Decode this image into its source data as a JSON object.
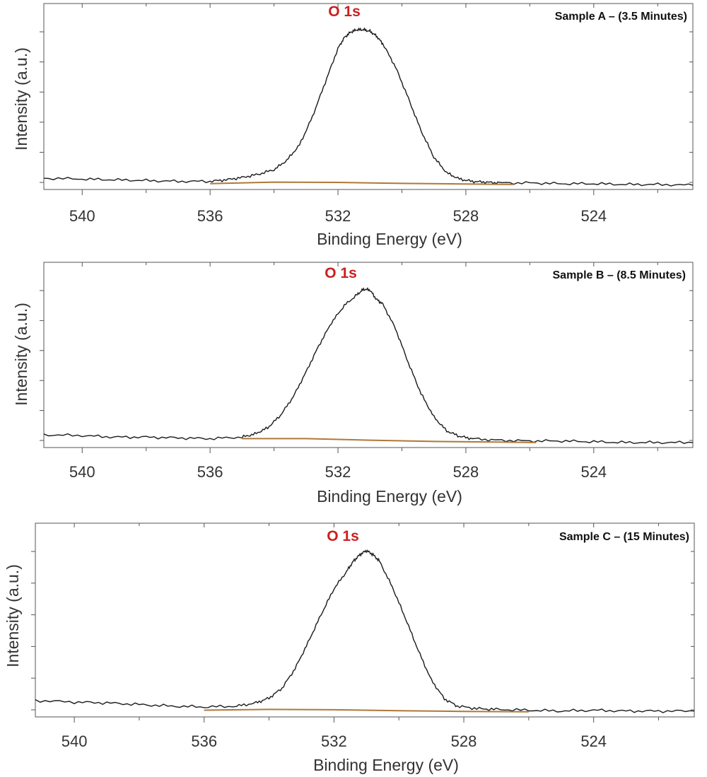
{
  "chart_data": [
    {
      "type": "line",
      "title": "Sample A – (3.5 Minutes)",
      "annotation": "O 1s",
      "xlabel": "Binding Energy (eV)",
      "ylabel": "Intensity (a.u.)",
      "xlim": [
        541.2,
        520.9
      ],
      "x_reversed": true,
      "xticks": [
        540,
        536,
        532,
        528,
        524
      ],
      "xtick_labels": [
        "540",
        "536",
        "532",
        "528",
        "524"
      ],
      "ylim": [
        0,
        1.05
      ],
      "grid": false,
      "series": [
        {
          "role": "spectrum",
          "x": [
            541.2,
            540.0,
            539.0,
            538.0,
            537.0,
            536.0,
            535.5,
            535.0,
            534.5,
            534.0,
            533.6,
            533.2,
            532.8,
            532.4,
            532.0,
            531.8,
            531.6,
            531.4,
            531.2,
            531.0,
            530.8,
            530.6,
            530.2,
            529.8,
            529.4,
            529.0,
            528.6,
            528.2,
            527.8,
            527.4,
            527.0,
            526.0,
            525.0,
            524.0,
            523.0,
            522.0,
            520.9
          ],
          "y": [
            0.045,
            0.04,
            0.035,
            0.03,
            0.025,
            0.025,
            0.035,
            0.05,
            0.07,
            0.1,
            0.16,
            0.26,
            0.44,
            0.66,
            0.88,
            0.95,
            0.985,
            1.0,
            1.0,
            0.99,
            0.96,
            0.91,
            0.76,
            0.56,
            0.35,
            0.18,
            0.08,
            0.04,
            0.025,
            0.02,
            0.015,
            0.015,
            0.01,
            0.01,
            0.005,
            0.005,
            0.0
          ]
        },
        {
          "role": "background",
          "x": [
            536.0,
            534.0,
            532.0,
            530.0,
            528.0,
            526.5
          ],
          "y": [
            0.01,
            0.02,
            0.018,
            0.012,
            0.008,
            0.005
          ]
        }
      ]
    },
    {
      "type": "line",
      "title": "Sample B – (8.5 Minutes)",
      "annotation": "O 1s",
      "xlabel": "Binding Energy (eV)",
      "ylabel": "Intensity (a.u.)",
      "xlim": [
        541.2,
        520.9
      ],
      "x_reversed": true,
      "xticks": [
        540,
        536,
        532,
        528,
        524
      ],
      "xtick_labels": [
        "540",
        "536",
        "532",
        "528",
        "524"
      ],
      "ylim": [
        0,
        1.05
      ],
      "grid": false,
      "series": [
        {
          "role": "spectrum",
          "x": [
            541.2,
            540.0,
            539.0,
            538.0,
            537.0,
            536.0,
            535.0,
            534.6,
            534.2,
            533.8,
            533.4,
            533.0,
            532.6,
            532.2,
            531.8,
            531.4,
            531.2,
            531.0,
            530.8,
            530.6,
            530.2,
            529.8,
            529.4,
            529.0,
            528.6,
            528.2,
            527.8,
            527.0,
            526.0,
            525.0,
            524.0,
            523.0,
            522.0,
            520.9
          ],
          "y": [
            0.055,
            0.05,
            0.04,
            0.04,
            0.035,
            0.03,
            0.04,
            0.06,
            0.1,
            0.18,
            0.3,
            0.46,
            0.63,
            0.78,
            0.89,
            0.96,
            0.995,
            0.99,
            0.93,
            0.9,
            0.74,
            0.52,
            0.32,
            0.17,
            0.08,
            0.045,
            0.03,
            0.02,
            0.015,
            0.015,
            0.01,
            0.005,
            0.005,
            0.005
          ]
        },
        {
          "role": "background",
          "x": [
            535.0,
            533.0,
            531.0,
            529.0,
            527.0,
            525.8
          ],
          "y": [
            0.03,
            0.03,
            0.02,
            0.012,
            0.008,
            0.005
          ]
        }
      ]
    },
    {
      "type": "line",
      "title": "Sample C – (15 Minutes)",
      "annotation": "O 1s",
      "xlabel": "Binding Energy (eV)",
      "ylabel": "Intensity (a.u.)",
      "xlim": [
        541.2,
        520.9
      ],
      "x_reversed": true,
      "xticks": [
        540,
        536,
        532,
        528,
        524
      ],
      "xtick_labels": [
        "540",
        "536",
        "532",
        "528",
        "524"
      ],
      "ylim": [
        0,
        1.05
      ],
      "grid": false,
      "series": [
        {
          "role": "spectrum",
          "x": [
            541.2,
            540.0,
            539.0,
            538.0,
            537.0,
            536.0,
            535.0,
            534.4,
            534.0,
            533.6,
            533.2,
            532.8,
            532.4,
            532.0,
            531.6,
            531.4,
            531.2,
            531.0,
            530.8,
            530.6,
            530.2,
            529.8,
            529.4,
            529.0,
            528.6,
            528.2,
            527.6,
            527.0,
            526.0,
            525.0,
            524.0,
            523.0,
            522.0,
            520.9
          ],
          "y": [
            0.075,
            0.065,
            0.06,
            0.05,
            0.04,
            0.035,
            0.04,
            0.06,
            0.09,
            0.15,
            0.27,
            0.43,
            0.6,
            0.76,
            0.87,
            0.93,
            0.97,
            0.995,
            0.97,
            0.93,
            0.77,
            0.58,
            0.38,
            0.2,
            0.085,
            0.04,
            0.025,
            0.02,
            0.015,
            0.01,
            0.015,
            0.01,
            0.01,
            0.01
          ]
        },
        {
          "role": "background",
          "x": [
            536.0,
            534.0,
            532.0,
            530.0,
            528.0,
            526.0
          ],
          "y": [
            0.015,
            0.02,
            0.018,
            0.012,
            0.008,
            0.005
          ]
        }
      ]
    }
  ],
  "colors": {
    "spectrum": "#1a1a1a",
    "background": "#b07838",
    "peak_label": "#cc1f1f",
    "axis": "#555555"
  }
}
